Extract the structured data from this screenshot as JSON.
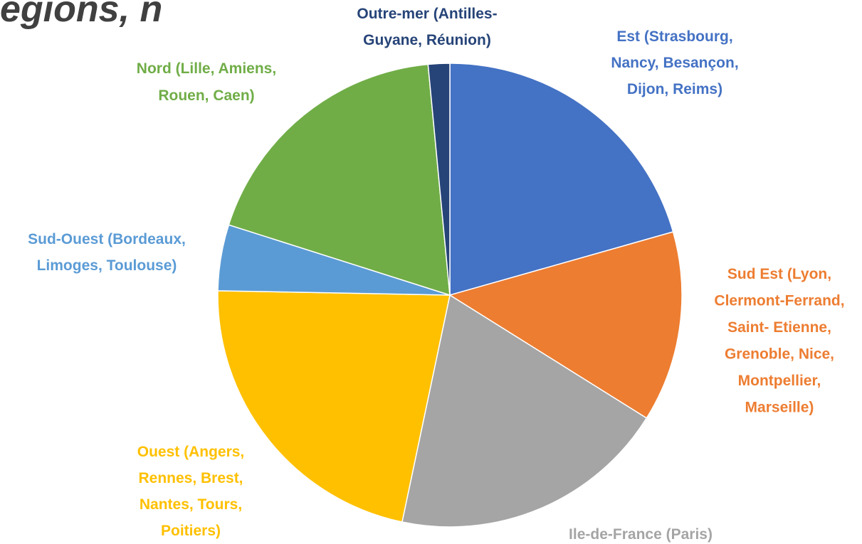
{
  "chart_data": {
    "type": "pie",
    "title": "égions, n",
    "categories": [
      [
        "Est (Strasbourg,",
        "Nancy, Besançon,",
        "Dijon, Reims)"
      ],
      [
        "Sud Est (Lyon,",
        "Clermont-Ferrand,",
        "Saint- Etienne,",
        "Grenoble, Nice,",
        "Montpellier,",
        "Marseille)"
      ],
      [
        "Ile-de-France (Paris)"
      ],
      [
        "Ouest (Angers,",
        "Rennes, Brest,",
        "Nantes, Tours,",
        "Poitiers)"
      ],
      [
        "Sud-Ouest (Bordeaux,",
        "Limoges, Toulouse)"
      ],
      [
        "Nord (Lille, Amiens,",
        "Rouen, Caen)"
      ],
      [
        "Outre-mer (Antilles-",
        "Guyane, Réunion)"
      ]
    ],
    "values": [
      20.6,
      13.3,
      19.4,
      22.0,
      4.6,
      18.6,
      1.5
    ],
    "colors": [
      "#4472c4",
      "#ed7d31",
      "#a5a5a5",
      "#ffc000",
      "#5b9bd5",
      "#70ad47",
      "#264478"
    ],
    "label_colors": [
      "#4472c4",
      "#ed7d31",
      "#a5a5a5",
      "#ffc000",
      "#5b9bd5",
      "#70ad47",
      "#264478"
    ]
  }
}
